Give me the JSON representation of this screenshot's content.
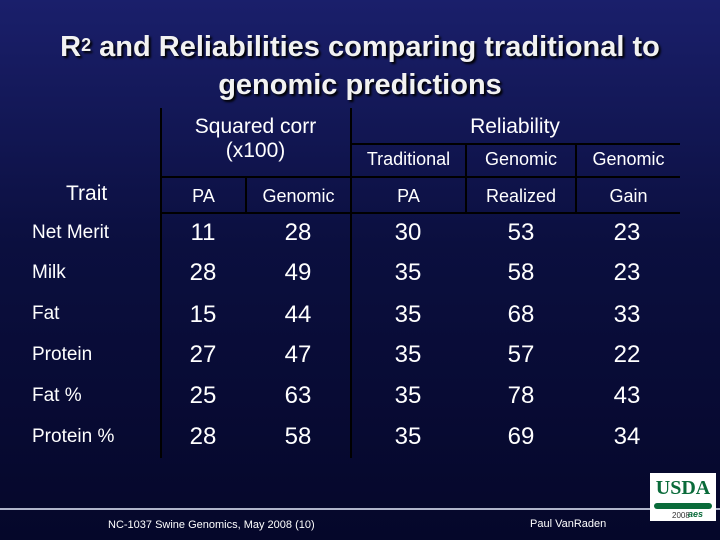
{
  "title": {
    "line1_prefix": "R",
    "superscript": "2",
    "line1_rest": " and Reliabilities comparing traditional to",
    "line2": "genomic predictions"
  },
  "table": {
    "group_headers": {
      "squared_corr_line1": "Squared corr",
      "squared_corr_line2": "(x100)",
      "reliability": "Reliability"
    },
    "sub_headers": {
      "traditional": "Traditional",
      "genomic1": "Genomic",
      "genomic2": "Genomic"
    },
    "column_headers": [
      "Trait",
      "PA",
      "Genomic",
      "PA",
      "Realized",
      "Gain"
    ],
    "rows": [
      {
        "trait": "Net Merit",
        "values": [
          "11",
          "28",
          "30",
          "53",
          "23"
        ]
      },
      {
        "trait": "Milk",
        "values": [
          "28",
          "49",
          "35",
          "58",
          "23"
        ]
      },
      {
        "trait": "Fat",
        "values": [
          "15",
          "44",
          "35",
          "68",
          "33"
        ]
      },
      {
        "trait": "Protein",
        "values": [
          "27",
          "47",
          "35",
          "57",
          "22"
        ]
      },
      {
        "trait": "Fat %",
        "values": [
          "25",
          "63",
          "35",
          "78",
          "43"
        ]
      },
      {
        "trait": "Protein %",
        "values": [
          "28",
          "58",
          "35",
          "69",
          "34"
        ]
      }
    ]
  },
  "footer": {
    "left": "NC-1037 Swine Genomics, May 2008 (10)",
    "right": "Paul VanRaden"
  },
  "logo": {
    "name": "USDA",
    "year": "2008",
    "mark": "aes"
  }
}
